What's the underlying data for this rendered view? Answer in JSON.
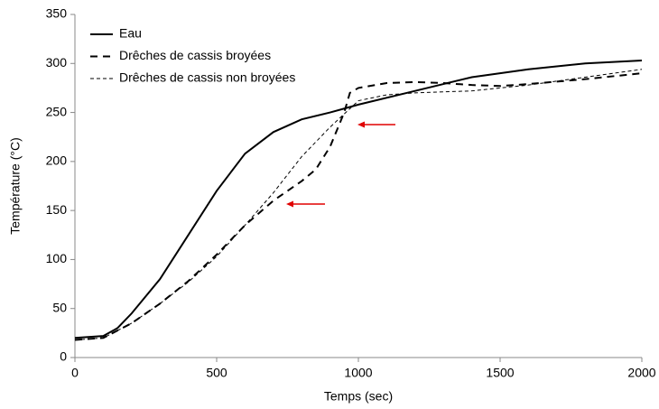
{
  "chart_data": {
    "type": "line",
    "xlabel": "Temps (sec)",
    "ylabel": "Température (°C)",
    "xlim": [
      0,
      2000
    ],
    "xticks": [
      0,
      500,
      1000,
      1500,
      2000
    ],
    "ylim": [
      0,
      350
    ],
    "yticks": [
      0,
      50,
      100,
      150,
      200,
      250,
      300,
      350
    ],
    "grid": false,
    "legend": "upper left",
    "series": [
      {
        "name": "Eau",
        "color": "#000000",
        "line_style": "solid",
        "line_width": 2,
        "x": [
          0,
          100,
          150,
          200,
          300,
          400,
          500,
          600,
          700,
          800,
          900,
          1000,
          1200,
          1400,
          1600,
          1800,
          2000
        ],
        "values": [
          20,
          22,
          30,
          45,
          80,
          125,
          170,
          208,
          230,
          243,
          250,
          258,
          272,
          286,
          294,
          300,
          303
        ]
      },
      {
        "name": "Drêches de cassis broyées",
        "color": "#000000",
        "line_style": "dashed",
        "line_width": 2,
        "x": [
          0,
          100,
          200,
          300,
          400,
          500,
          600,
          700,
          750,
          800,
          850,
          900,
          950,
          970,
          1000,
          1100,
          1200,
          1300,
          1400,
          1500,
          1600,
          1800,
          2000
        ],
        "values": [
          18,
          20,
          35,
          55,
          78,
          105,
          135,
          160,
          170,
          180,
          192,
          215,
          250,
          270,
          275,
          280,
          281,
          280,
          278,
          277,
          279,
          284,
          290
        ]
      },
      {
        "name": "Drêches de cassis non broyées",
        "color": "#000000",
        "line_style": "dashed",
        "line_width": 1,
        "x": [
          0,
          100,
          200,
          300,
          400,
          500,
          600,
          700,
          800,
          900,
          1000,
          1100,
          1200,
          1400,
          1600,
          1800,
          2000
        ],
        "values": [
          18,
          20,
          35,
          55,
          77,
          103,
          135,
          168,
          205,
          235,
          262,
          268,
          270,
          272,
          278,
          286,
          294
        ]
      }
    ]
  }
}
